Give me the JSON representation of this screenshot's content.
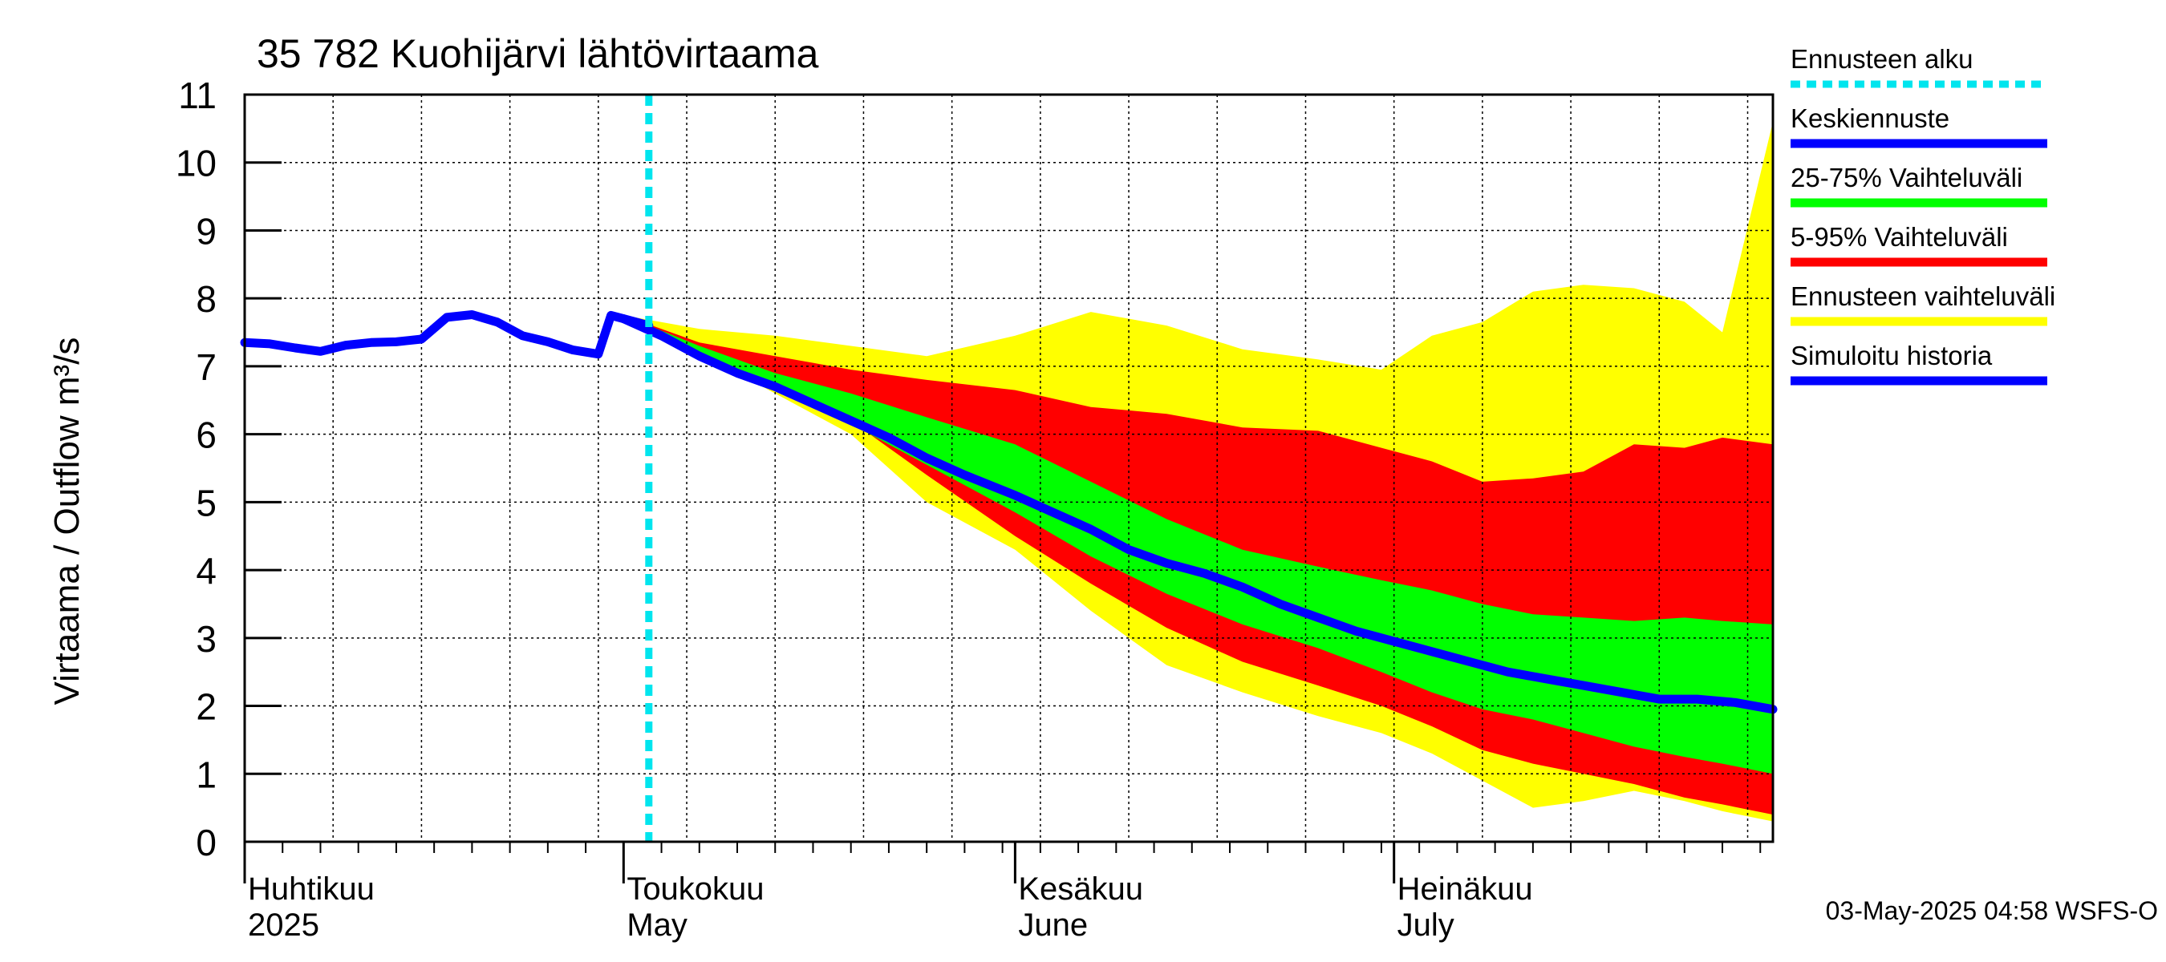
{
  "chart_data": {
    "type": "area",
    "title": "35 782 Kuohijärvi lähtövirtaama",
    "ylabel": "Virtaama / Outflow    m³/s",
    "ylim": [
      0,
      11
    ],
    "yticks": [
      0,
      1,
      2,
      3,
      4,
      5,
      6,
      7,
      8,
      9,
      10,
      11
    ],
    "xlim": [
      "2025-04-01",
      "2025-07-31"
    ],
    "grid": true,
    "legend_placement": "right",
    "forecast_start": "2025-05-03",
    "month_labels": [
      {
        "date": "2025-04-01",
        "fi": "Huhtikuu",
        "en": "2025"
      },
      {
        "date": "2025-05-01",
        "fi": "Toukokuu",
        "en": "May"
      },
      {
        "date": "2025-06-01",
        "fi": "Kesäkuu",
        "en": "June"
      },
      {
        "date": "2025-07-01",
        "fi": "Heinäkuu",
        "en": "July"
      }
    ],
    "footer": "03-May-2025 04:58 WSFS-O",
    "colors": {
      "forecast_start": "#00e5ee",
      "median": "#0000ff",
      "iqr": "#00ff00",
      "p5_95": "#ff0000",
      "range": "#ffff00",
      "history": "#0000ff",
      "grid": "#000000"
    },
    "legend": [
      {
        "label": "Ennusteen alku",
        "key": "forecast_start",
        "style": "dotted"
      },
      {
        "label": "Keskiennuste",
        "key": "median",
        "style": "solid"
      },
      {
        "label": "25-75% Vaihteluväli",
        "key": "iqr",
        "style": "solid"
      },
      {
        "label": "5-95% Vaihteluväli",
        "key": "p5_95",
        "style": "solid"
      },
      {
        "label": "Ennusteen vaihteluväli",
        "key": "range",
        "style": "solid"
      },
      {
        "label": "Simuloitu historia",
        "key": "history",
        "style": "solid"
      }
    ],
    "history": {
      "x": [
        "2025-04-01",
        "2025-04-03",
        "2025-04-05",
        "2025-04-07",
        "2025-04-09",
        "2025-04-11",
        "2025-04-13",
        "2025-04-15",
        "2025-04-17",
        "2025-04-19",
        "2025-04-21",
        "2025-04-23",
        "2025-04-25",
        "2025-04-27",
        "2025-04-29",
        "2025-04-30",
        "2025-05-01",
        "2025-05-02",
        "2025-05-03"
      ],
      "y": [
        7.35,
        7.33,
        7.27,
        7.22,
        7.31,
        7.35,
        7.36,
        7.4,
        7.72,
        7.76,
        7.65,
        7.45,
        7.36,
        7.24,
        7.18,
        7.75,
        7.7,
        7.65,
        7.6
      ]
    },
    "series": [
      {
        "key": "range",
        "x": [
          "2025-05-01",
          "2025-05-07",
          "2025-05-13",
          "2025-05-19",
          "2025-05-25",
          "2025-06-01",
          "2025-06-07",
          "2025-06-13",
          "2025-06-19",
          "2025-06-25",
          "2025-06-30",
          "2025-07-04",
          "2025-07-08",
          "2025-07-12",
          "2025-07-16",
          "2025-07-20",
          "2025-07-24",
          "2025-07-27",
          "2025-07-31"
        ],
        "upper": [
          7.75,
          7.55,
          7.45,
          7.3,
          7.15,
          7.45,
          7.8,
          7.6,
          7.25,
          7.1,
          6.95,
          7.45,
          7.65,
          8.1,
          8.2,
          8.15,
          7.95,
          7.5,
          10.6
        ],
        "lower": [
          7.75,
          7.2,
          6.6,
          6.0,
          5.0,
          4.3,
          3.4,
          2.6,
          2.2,
          1.85,
          1.6,
          1.3,
          0.9,
          0.5,
          0.6,
          0.75,
          0.6,
          0.45,
          0.3
        ]
      },
      {
        "key": "p5_95",
        "x": [
          "2025-05-01",
          "2025-05-07",
          "2025-05-13",
          "2025-05-19",
          "2025-05-25",
          "2025-06-01",
          "2025-06-07",
          "2025-06-13",
          "2025-06-19",
          "2025-06-25",
          "2025-06-30",
          "2025-07-04",
          "2025-07-08",
          "2025-07-12",
          "2025-07-16",
          "2025-07-20",
          "2025-07-24",
          "2025-07-27",
          "2025-07-31"
        ],
        "upper": [
          7.75,
          7.35,
          7.15,
          6.95,
          6.8,
          6.65,
          6.4,
          6.3,
          6.1,
          6.05,
          5.8,
          5.6,
          5.3,
          5.35,
          5.45,
          5.85,
          5.8,
          5.95,
          5.85
        ],
        "lower": [
          7.75,
          7.25,
          6.75,
          6.2,
          5.4,
          4.5,
          3.8,
          3.15,
          2.65,
          2.3,
          2.0,
          1.7,
          1.35,
          1.15,
          1.0,
          0.85,
          0.65,
          0.55,
          0.4
        ]
      },
      {
        "key": "iqr",
        "x": [
          "2025-05-01",
          "2025-05-07",
          "2025-05-13",
          "2025-05-19",
          "2025-05-25",
          "2025-06-01",
          "2025-06-07",
          "2025-06-13",
          "2025-06-19",
          "2025-06-25",
          "2025-06-30",
          "2025-07-04",
          "2025-07-08",
          "2025-07-12",
          "2025-07-16",
          "2025-07-20",
          "2025-07-24",
          "2025-07-27",
          "2025-07-31"
        ],
        "upper": [
          7.75,
          7.3,
          6.9,
          6.6,
          6.25,
          5.85,
          5.3,
          4.75,
          4.3,
          4.05,
          3.85,
          3.7,
          3.5,
          3.35,
          3.3,
          3.25,
          3.3,
          3.25,
          3.2
        ],
        "lower": [
          7.75,
          7.1,
          6.65,
          6.15,
          5.55,
          4.85,
          4.2,
          3.65,
          3.2,
          2.85,
          2.5,
          2.2,
          1.95,
          1.8,
          1.6,
          1.4,
          1.25,
          1.15,
          1.0
        ]
      },
      {
        "key": "median",
        "x": [
          "2025-05-01",
          "2025-05-04",
          "2025-05-07",
          "2025-05-10",
          "2025-05-13",
          "2025-05-16",
          "2025-05-19",
          "2025-05-22",
          "2025-05-25",
          "2025-05-28",
          "2025-06-01",
          "2025-06-04",
          "2025-06-07",
          "2025-06-10",
          "2025-06-13",
          "2025-06-16",
          "2025-06-19",
          "2025-06-22",
          "2025-06-25",
          "2025-06-28",
          "2025-07-01",
          "2025-07-04",
          "2025-07-07",
          "2025-07-10",
          "2025-07-13",
          "2025-07-16",
          "2025-07-19",
          "2025-07-22",
          "2025-07-25",
          "2025-07-28",
          "2025-07-31"
        ],
        "values": [
          7.7,
          7.45,
          7.15,
          6.9,
          6.7,
          6.45,
          6.2,
          5.95,
          5.65,
          5.4,
          5.1,
          4.85,
          4.6,
          4.3,
          4.1,
          3.95,
          3.75,
          3.5,
          3.3,
          3.1,
          2.95,
          2.8,
          2.65,
          2.5,
          2.4,
          2.3,
          2.2,
          2.1,
          2.1,
          2.05,
          1.95
        ]
      }
    ]
  }
}
